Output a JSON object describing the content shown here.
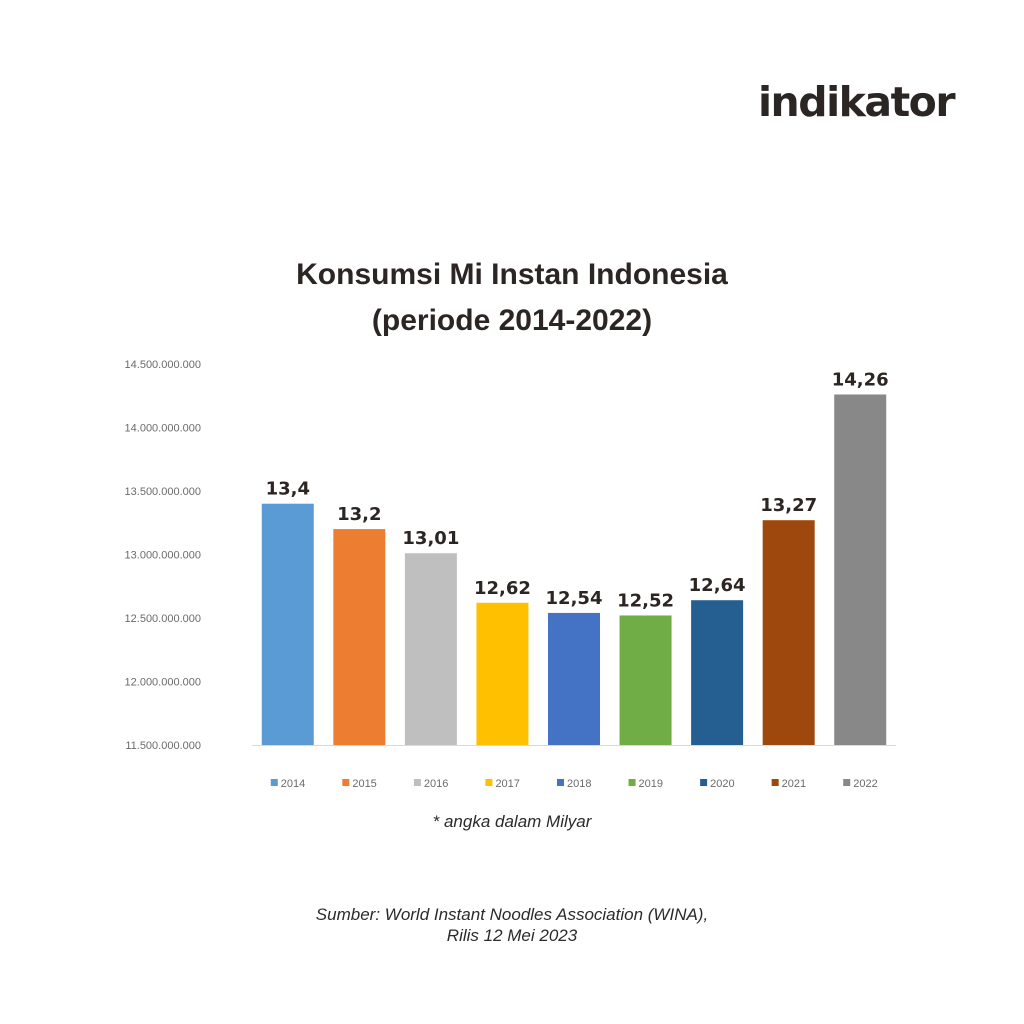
{
  "brand": {
    "logo_text": "indikator"
  },
  "colors": {
    "text": "#2b2523",
    "axis_tick": "#6b6b6b",
    "axis_line": "#d9d9d9",
    "series": [
      "#5b9bd5",
      "#ed7d31",
      "#bfbfbf",
      "#ffc000",
      "#4472c4",
      "#70ad47",
      "#255e91",
      "#9e480e",
      "#888888"
    ]
  },
  "note": "* angka dalam Milyar",
  "source": {
    "line1": "Sumber: World Instant Noodles Association (WINA),",
    "line2": "Rilis 12 Mei 2023"
  },
  "chart_data": {
    "type": "bar",
    "title": "Konsumsi Mi Instan Indonesia",
    "subtitle": "(periode 2014-2022)",
    "categories": [
      "2014",
      "2015",
      "2016",
      "2017",
      "2018",
      "2019",
      "2020",
      "2021",
      "2022"
    ],
    "values": [
      13400000000,
      13200000000,
      13010000000,
      12620000000,
      12540000000,
      12520000000,
      12640000000,
      13270000000,
      14260000000
    ],
    "data_labels": [
      "13,4",
      "13,2",
      "13,01",
      "12,62",
      "12,54",
      "12,52",
      "12,64",
      "13,27",
      "14,26"
    ],
    "ylim": [
      11500000000,
      14500000000
    ],
    "yticks": [
      11500000000,
      12000000000,
      12500000000,
      13000000000,
      13500000000,
      14000000000,
      14500000000
    ],
    "ytick_labels": [
      "11.500.000.000",
      "12.000.000.000",
      "12.500.000.000",
      "13.000.000.000",
      "13.500.000.000",
      "14.000.000.000",
      "14.500.000.000"
    ],
    "grid": false,
    "legend": "bottom",
    "xlabel": "",
    "ylabel": ""
  }
}
